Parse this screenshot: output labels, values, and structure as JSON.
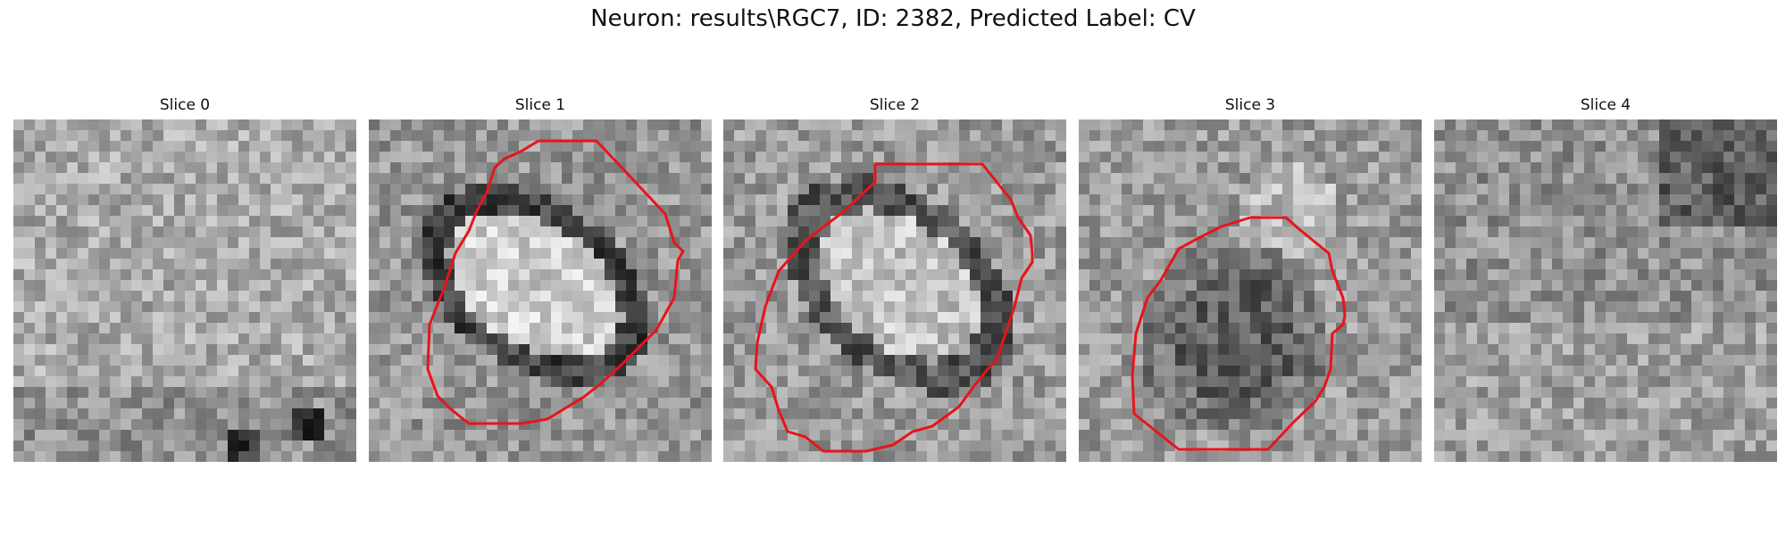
{
  "figure": {
    "title": "Neuron: results\\RGC7, ID: 2382, Predicted Label: CV"
  },
  "panels": [
    {
      "title": "Slice 0",
      "has_contour": false
    },
    {
      "title": "Slice 1",
      "has_contour": true
    },
    {
      "title": "Slice 2",
      "has_contour": true
    },
    {
      "title": "Slice 3",
      "has_contour": true
    },
    {
      "title": "Slice 4",
      "has_contour": false
    }
  ],
  "colors": {
    "contour": "#e8141a",
    "background": "#ffffff"
  }
}
